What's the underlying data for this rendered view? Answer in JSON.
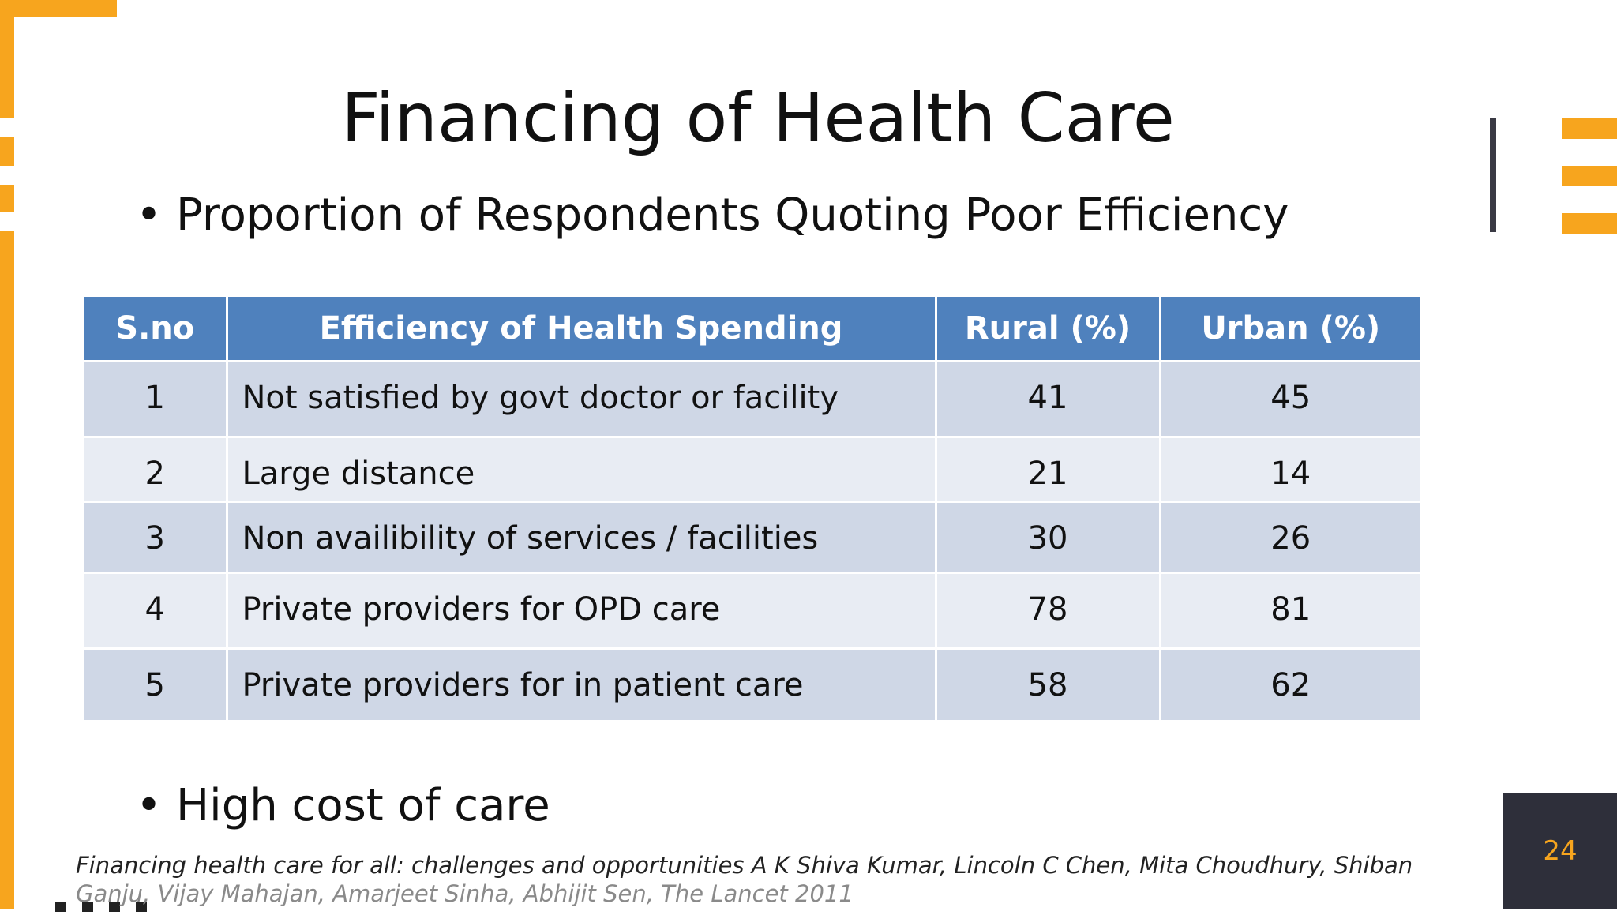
{
  "slide": {
    "title": "Financing of Health Care",
    "bullet_1": "Proportion of Respondents Quoting Poor Efficiency",
    "bullet_2": "High cost of care",
    "bullet_symbol": "•",
    "page_number": "24"
  },
  "table": {
    "headers": [
      "S.no",
      "Efficiency of Health Spending",
      "Rural  (%)",
      "Urban (%)"
    ],
    "rows": [
      {
        "sno": "1",
        "desc": "Not satisfied by govt doctor or facility",
        "rural": "41",
        "urban": "45"
      },
      {
        "sno": "2",
        "desc": "Large distance",
        "rural": "21",
        "urban": "14"
      },
      {
        "sno": "3",
        "desc": "Non availibility of services / facilities",
        "rural": "30",
        "urban": "26"
      },
      {
        "sno": "4",
        "desc": "Private providers for OPD care",
        "rural": "78",
        "urban": "81"
      },
      {
        "sno": "5",
        "desc": "Private providers for in patient care",
        "rural": "58",
        "urban": "62"
      }
    ]
  },
  "citation": {
    "line_1": "Financing health care for all: challenges and opportunities A K Shiva Kumar, Lincoln C Chen, Mita Choudhury, Shiban",
    "line_2": "Ganju, Vijay Mahajan, Amarjeet Sinha, Abhijit Sen, The Lancet 2011"
  },
  "colors": {
    "accent": "#f7a51e",
    "table_header": "#4f81bd",
    "row_dark": "#cfd7e6",
    "row_light": "#e8ecf3",
    "page_box": "#2e2f3a"
  }
}
